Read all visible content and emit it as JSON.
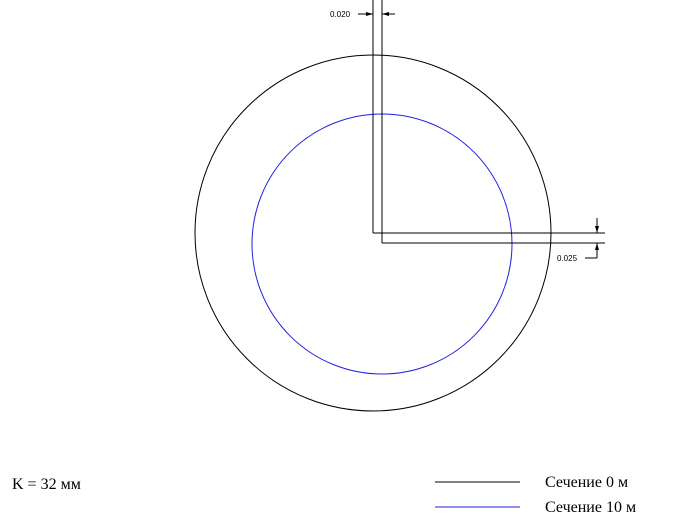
{
  "dimensions": {
    "vertical_offset": "0.020",
    "horizontal_offset": "0.025"
  },
  "note": "K = 32 мм",
  "legend": [
    {
      "label": "Сечение 0 м"
    },
    {
      "label": "Сечение 10 м"
    }
  ]
}
